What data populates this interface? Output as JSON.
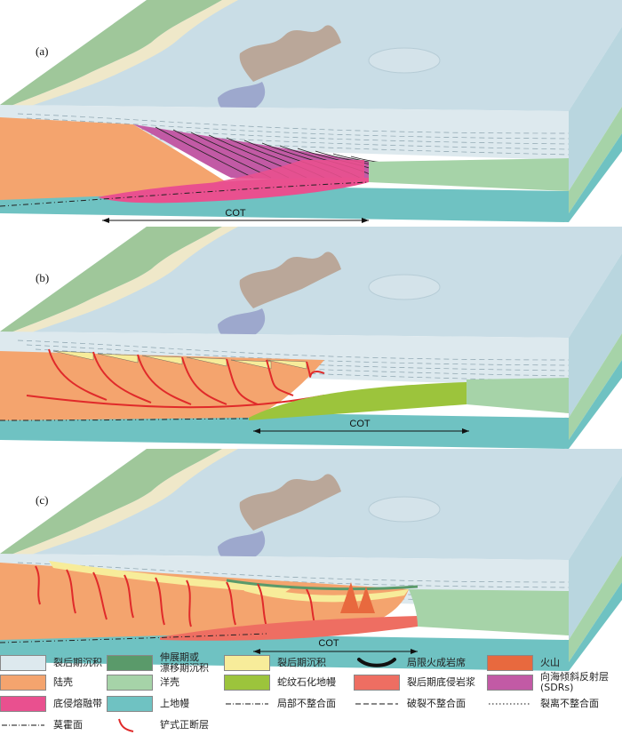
{
  "panels": [
    {
      "label": "(a)",
      "cot": "COT"
    },
    {
      "label": "(b)",
      "cot": "COT"
    },
    {
      "label": "(c)",
      "cot": "COT"
    }
  ],
  "colors": {
    "postrift_sediment": "#dde9ee",
    "continental_crust": "#f4a46e",
    "underplated_melt": "#e9508f",
    "synrift_sediment": "#5a9a6a",
    "oceanic_crust": "#a6d3a8",
    "upper_mantle": "#6fc2c2",
    "postrift_sed_yellow": "#f7ec9a",
    "serpentinized_mantle": "#9cc43c",
    "sill": "#111111",
    "intrusive_magma": "#ee6e62",
    "volcano": "#e8693e",
    "sdr": "#c25aa5",
    "fault": "#e02a2a",
    "sea": "#c9dde6",
    "land": "#9fc79a",
    "coast": "#efe8c9"
  },
  "legend": [
    {
      "key": "postrift_sediment",
      "type": "fill",
      "lines": [
        "裂后期沉积"
      ]
    },
    {
      "key": "synrift_sediment",
      "type": "fill",
      "lines": [
        "伸展期或",
        "漂移期沉积"
      ]
    },
    {
      "key": "postrift_sed_yellow",
      "type": "fill",
      "lines": [
        "裂后期沉积"
      ]
    },
    {
      "key": "sill",
      "type": "sill",
      "lines": [
        "局限火成岩席"
      ]
    },
    {
      "key": "volcano",
      "type": "fill",
      "lines": [
        "火山"
      ]
    },
    {
      "key": "continental_crust",
      "type": "fill",
      "lines": [
        "陆壳"
      ]
    },
    {
      "key": "oceanic_crust",
      "type": "fill",
      "lines": [
        "洋壳"
      ]
    },
    {
      "key": "serpentinized_mantle",
      "type": "fill",
      "lines": [
        "蛇纹石化地幔"
      ]
    },
    {
      "key": "intrusive_magma",
      "type": "fill",
      "lines": [
        "裂后期底侵岩浆"
      ]
    },
    {
      "key": "sdr",
      "type": "fill",
      "lines": [
        "向海倾斜反射层",
        "(SDRs)"
      ]
    },
    {
      "key": "underplated_melt",
      "type": "fill",
      "lines": [
        "底侵熔融带"
      ]
    },
    {
      "key": "upper_mantle",
      "type": "fill",
      "lines": [
        "上地幔"
      ]
    },
    {
      "key": "local_unconformity",
      "type": "dashdot",
      "lines": [
        "局部不整合面"
      ]
    },
    {
      "key": "breakup_unconformity",
      "type": "dash",
      "lines": [
        "破裂不整合面"
      ]
    },
    {
      "key": "rift_unconformity",
      "type": "dot",
      "lines": [
        "裂离不整合面"
      ]
    },
    {
      "key": "moho",
      "type": "dashdot2",
      "lines": [
        "莫霍面"
      ]
    },
    {
      "key": "fault",
      "type": "fault",
      "lines": [
        "铲式正断层"
      ]
    }
  ]
}
